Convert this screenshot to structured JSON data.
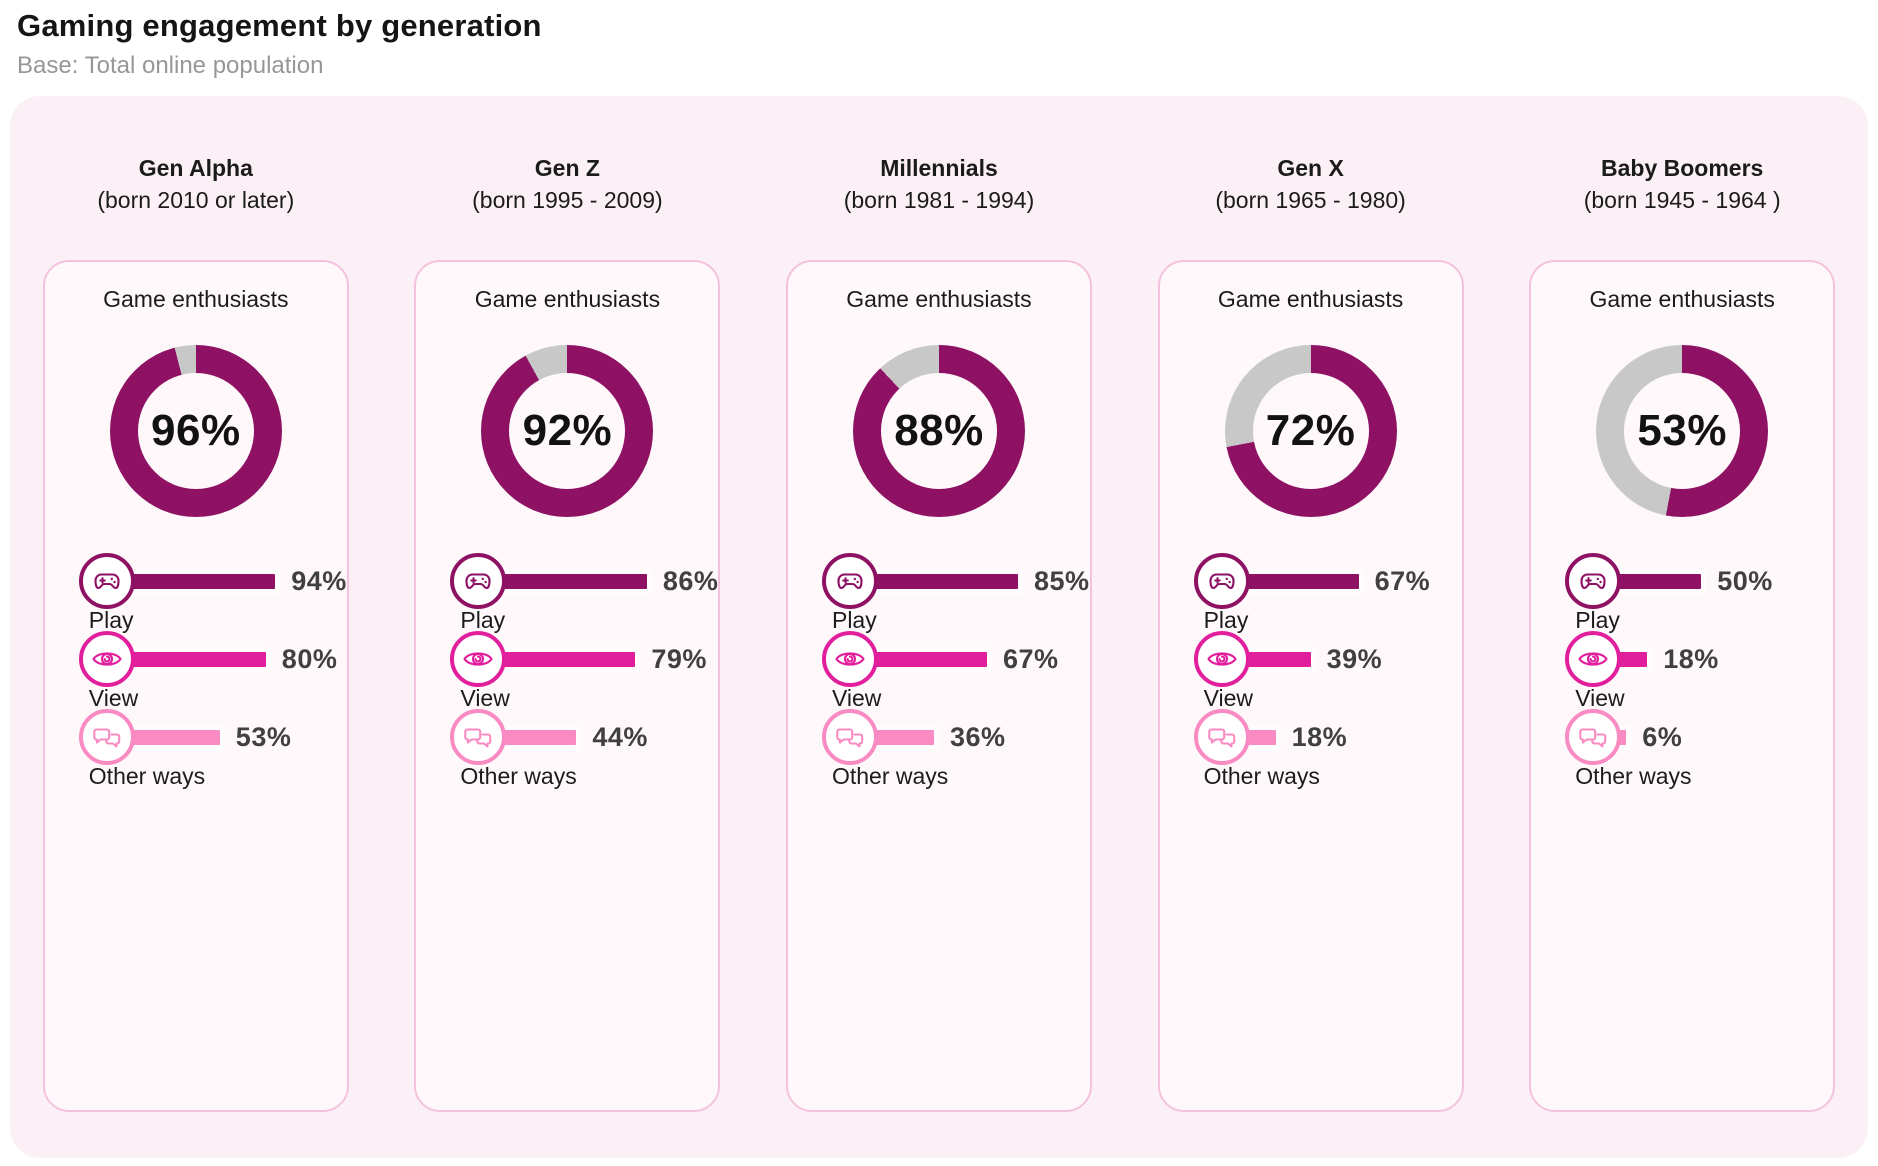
{
  "page": {
    "title": "Gaming engagement by generation",
    "subtitle": "Base: Total online population"
  },
  "colors": {
    "donut_fill": "#8e1164",
    "donut_rest": "#c8c8c8",
    "play_accent": "#8e1164",
    "view_accent": "#e11e9c",
    "other_ways_accent": "#f98ac2",
    "panel_bg": "#fbf0f6",
    "card_bg": "#fef8fb",
    "card_border": "#f5c2de"
  },
  "columns": [
    {
      "name": "Gen Alpha",
      "born": "(born 2010 or later)",
      "card_title": "Game enthusiasts",
      "enthusiasts": {
        "value": 96,
        "display": "96%"
      },
      "rows": [
        {
          "label": "Play",
          "icon": "gamepad-icon",
          "value": 94,
          "display": "94%"
        },
        {
          "label": "View",
          "icon": "eye-icon",
          "value": 80,
          "display": "80%"
        },
        {
          "label": "Other ways",
          "icon": "chat-bubbles-icon",
          "value": 53,
          "display": "53%"
        }
      ]
    },
    {
      "name": "Gen Z",
      "born": "(born 1995 - 2009)",
      "card_title": "Game enthusiasts",
      "enthusiasts": {
        "value": 92,
        "display": "92%"
      },
      "rows": [
        {
          "label": "Play",
          "icon": "gamepad-icon",
          "value": 86,
          "display": "86%"
        },
        {
          "label": "View",
          "icon": "eye-icon",
          "value": 79,
          "display": "79%"
        },
        {
          "label": "Other ways",
          "icon": "chat-bubbles-icon",
          "value": 44,
          "display": "44%"
        }
      ]
    },
    {
      "name": "Millennials",
      "born": "(born 1981 - 1994)",
      "card_title": "Game enthusiasts",
      "enthusiasts": {
        "value": 88,
        "display": "88%"
      },
      "rows": [
        {
          "label": "Play",
          "icon": "gamepad-icon",
          "value": 85,
          "display": "85%"
        },
        {
          "label": "View",
          "icon": "eye-icon",
          "value": 67,
          "display": "67%"
        },
        {
          "label": "Other ways",
          "icon": "chat-bubbles-icon",
          "value": 36,
          "display": "36%"
        }
      ]
    },
    {
      "name": "Gen X",
      "born": "(born 1965 - 1980)",
      "card_title": "Game enthusiasts",
      "enthusiasts": {
        "value": 72,
        "display": "72%"
      },
      "rows": [
        {
          "label": "Play",
          "icon": "gamepad-icon",
          "value": 67,
          "display": "67%"
        },
        {
          "label": "View",
          "icon": "eye-icon",
          "value": 39,
          "display": "39%"
        },
        {
          "label": "Other ways",
          "icon": "chat-bubbles-icon",
          "value": 18,
          "display": "18%"
        }
      ]
    },
    {
      "name": "Baby Boomers",
      "born": "(born 1945 - 1964 )",
      "card_title": "Game enthusiasts",
      "enthusiasts": {
        "value": 53,
        "display": "53%"
      },
      "rows": [
        {
          "label": "Play",
          "icon": "gamepad-icon",
          "value": 50,
          "display": "50%"
        },
        {
          "label": "View",
          "icon": "eye-icon",
          "value": 18,
          "display": "18%"
        },
        {
          "label": "Other ways",
          "icon": "chat-bubbles-icon",
          "value": 6,
          "display": "6%"
        }
      ]
    }
  ],
  "chart_data": {
    "type": "bar",
    "subtype": "donut-plus-horizontal-bars-per-category",
    "title": "Gaming engagement by generation",
    "subtitle": "Base: Total online population",
    "categories": [
      "Gen Alpha",
      "Gen Z",
      "Millennials",
      "Gen X",
      "Baby Boomers"
    ],
    "category_sublabels": [
      "(born 2010 or later)",
      "(born 1995 - 2009)",
      "(born 1981 - 1994)",
      "(born 1965 - 1980)",
      "(born 1945 - 1964 )"
    ],
    "series": [
      {
        "name": "Game enthusiasts",
        "values": [
          96,
          92,
          88,
          72,
          53
        ],
        "render": "donut",
        "color": "#8e1164"
      },
      {
        "name": "Play",
        "values": [
          94,
          86,
          85,
          67,
          50
        ],
        "render": "bar",
        "color": "#8e1164"
      },
      {
        "name": "View",
        "values": [
          80,
          79,
          67,
          39,
          18
        ],
        "render": "bar",
        "color": "#e11e9c"
      },
      {
        "name": "Other ways",
        "values": [
          53,
          44,
          36,
          18,
          6
        ],
        "render": "bar",
        "color": "#f98ac2"
      }
    ],
    "value_range": [
      0,
      100
    ],
    "units": "%",
    "grid": false,
    "legend": false
  }
}
